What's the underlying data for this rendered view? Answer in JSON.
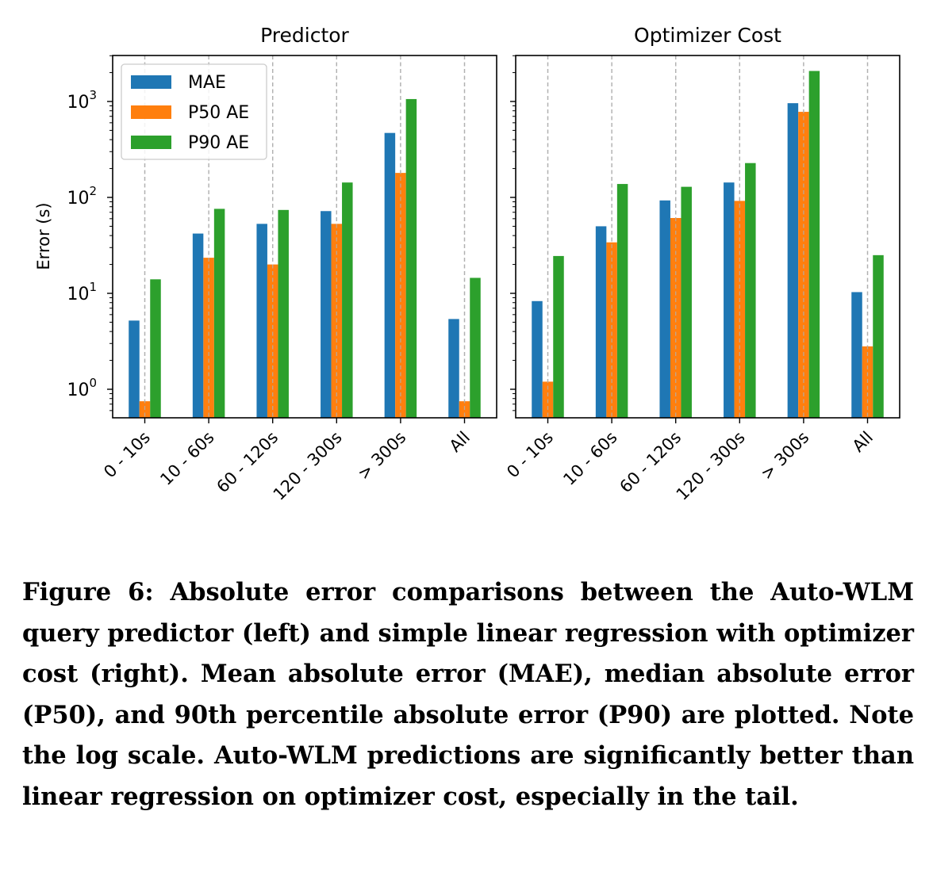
{
  "chart_data": [
    {
      "type": "bar",
      "title": "Predictor",
      "ylabel": "Error (s)",
      "yscale": "log",
      "ylim": [
        0.5,
        3000
      ],
      "grid": "x dashed",
      "legend_position": "top-left",
      "categories": [
        "0 - 10s",
        "10 - 60s",
        "60 - 120s",
        "120 - 300s",
        "> 300s",
        "All"
      ],
      "series": [
        {
          "name": "MAE",
          "color": "#1f77b4",
          "values": [
            5.2,
            42,
            53,
            72,
            470,
            5.4
          ]
        },
        {
          "name": "P50 AE",
          "color": "#ff7f0e",
          "values": [
            0.75,
            23.5,
            20,
            53,
            180,
            0.75
          ]
        },
        {
          "name": "P90 AE",
          "color": "#2ca02c",
          "values": [
            14,
            76,
            74,
            143,
            1060,
            14.5
          ]
        }
      ]
    },
    {
      "type": "bar",
      "title": "Optimizer Cost",
      "yscale": "log",
      "ylim": [
        0.5,
        3000
      ],
      "grid": "x dashed",
      "categories": [
        "0 - 10s",
        "10 - 60s",
        "60 - 120s",
        "120 - 300s",
        "> 300s",
        "All"
      ],
      "series": [
        {
          "name": "MAE",
          "color": "#1f77b4",
          "values": [
            8.3,
            50,
            93,
            143,
            960,
            10.3
          ]
        },
        {
          "name": "P50 AE",
          "color": "#ff7f0e",
          "values": [
            1.2,
            34,
            61,
            92,
            780,
            2.8
          ]
        },
        {
          "name": "P90 AE",
          "color": "#2ca02c",
          "values": [
            24.5,
            138,
            129,
            228,
            2080,
            25
          ]
        }
      ]
    }
  ],
  "ytick_labels": [
    {
      "base": "10",
      "exp": "0"
    },
    {
      "base": "10",
      "exp": "1"
    },
    {
      "base": "10",
      "exp": "2"
    },
    {
      "base": "10",
      "exp": "3"
    }
  ],
  "caption": "Figure 6: Absolute error comparisons between the Auto-WLM query predictor (left) and simple linear regression with optimizer cost (right). Mean absolute error (MAE), median absolute error (P50), and 90th percentile absolute error (P90) are plotted. Note the log scale. Auto-WLM predictions are significantly better than linear regression on optimizer cost, especially in the tail."
}
